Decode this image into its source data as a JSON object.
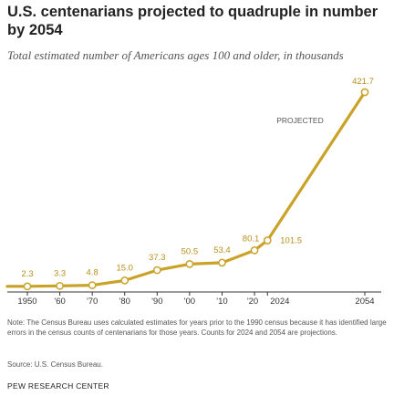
{
  "title": "U.S. centenarians projected to quadruple in number by 2054",
  "subtitle": "Total estimated number of Americans ages 100 and older, in thousands",
  "note": "Note: The Census Bureau uses calculated estimates for years prior to the 1990 census because it has identified large errors in the census counts of centenarians for those years. Counts for 2024 and 2054 are projections.",
  "source": "Source: U.S. Census Bureau.",
  "brand": "PEW RESEARCH CENTER",
  "colors": {
    "line": "#c9a227",
    "label": "#b8901a",
    "text": "#222222",
    "muted": "#555555",
    "axis": "#333333"
  },
  "chart_data": {
    "type": "line",
    "title": "U.S. centenarians projected to quadruple in number by 2054",
    "xlabel": "",
    "ylabel": "",
    "xlim": [
      1950,
      2054
    ],
    "ylim": [
      0,
      421.7
    ],
    "grid": false,
    "projected_label": "PROJECTED",
    "series": [
      {
        "points": [
          {
            "x": 1950,
            "y": 2.3,
            "label": "2.3"
          },
          {
            "x": 1960,
            "y": 3.3,
            "label": "3.3"
          },
          {
            "x": 1970,
            "y": 4.8,
            "label": "4.8"
          },
          {
            "x": 1980,
            "y": 15.0,
            "label": "15.0"
          },
          {
            "x": 1990,
            "y": 37.3,
            "label": "37.3"
          },
          {
            "x": 2000,
            "y": 50.5,
            "label": "50.5"
          },
          {
            "x": 2010,
            "y": 53.4,
            "label": "53.4"
          },
          {
            "x": 2020,
            "y": 80.1,
            "label": "80.1"
          },
          {
            "x": 2024,
            "y": 101.5,
            "label": "101.5"
          },
          {
            "x": 2054,
            "y": 421.7,
            "label": "421.7"
          }
        ]
      }
    ],
    "x_ticks": [
      {
        "x": 1950,
        "label": "1950"
      },
      {
        "x": 1960,
        "label": "'60"
      },
      {
        "x": 1970,
        "label": "'70"
      },
      {
        "x": 1980,
        "label": "'80"
      },
      {
        "x": 1990,
        "label": "'90"
      },
      {
        "x": 2000,
        "label": "'00"
      },
      {
        "x": 2010,
        "label": "'10"
      },
      {
        "x": 2020,
        "label": "'20"
      },
      {
        "x": 2024,
        "label": "2024"
      },
      {
        "x": 2054,
        "label": "2054"
      }
    ]
  }
}
